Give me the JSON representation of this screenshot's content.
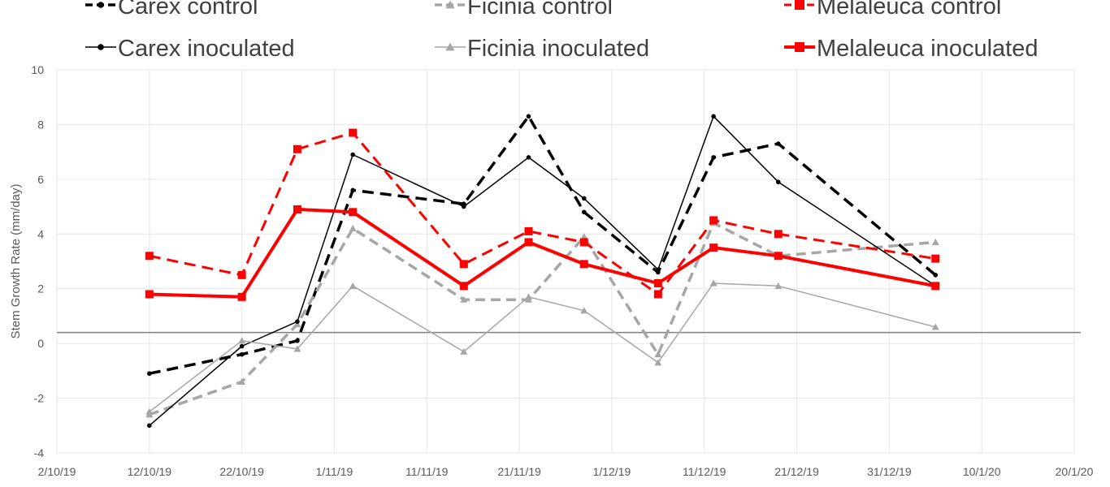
{
  "chart_data": {
    "type": "line",
    "title": "",
    "xlabel": "",
    "ylabel": "Stem Growth Rate (mm/day)",
    "ylim": [
      -4,
      10
    ],
    "xlim": [
      "2019-10-02",
      "2020-01-20"
    ],
    "x_ticks": [
      "2/10/19",
      "12/10/19",
      "22/10/19",
      "1/11/19",
      "11/11/19",
      "21/11/19",
      "1/12/19",
      "11/12/19",
      "21/12/19",
      "31/12/19",
      "10/1/20",
      "20/1/20"
    ],
    "y_ticks": [
      "-4",
      "-2",
      "0",
      "2",
      "4",
      "6",
      "8",
      "10"
    ],
    "grid": true,
    "legend_position": "top",
    "reference_line_y": 0.4,
    "series": [
      {
        "name": "Carex control",
        "color": "#000000",
        "style": "dashed",
        "marker": "circle",
        "x": [
          "2019-10-12",
          "2019-10-22",
          "2019-10-28",
          "2019-11-03",
          "2019-11-15",
          "2019-11-22",
          "2019-11-28",
          "2019-12-06",
          "2019-12-12",
          "2019-12-19",
          "2020-01-05"
        ],
        "values": [
          -1.1,
          -0.4,
          0.1,
          5.6,
          5.1,
          8.3,
          4.8,
          2.6,
          6.8,
          7.3,
          2.5
        ]
      },
      {
        "name": "Ficinia control",
        "color": "#a6a6a6",
        "style": "dashed",
        "marker": "triangle",
        "x": [
          "2019-10-12",
          "2019-10-22",
          "2019-10-28",
          "2019-11-03",
          "2019-11-15",
          "2019-11-22",
          "2019-11-28",
          "2019-12-06",
          "2019-12-12",
          "2019-12-19",
          "2020-01-05"
        ],
        "values": [
          -2.6,
          -1.4,
          0.7,
          4.2,
          1.6,
          1.6,
          3.9,
          -0.4,
          4.4,
          3.2,
          3.7
        ]
      },
      {
        "name": "Melaleuca control",
        "color": "#ff0000",
        "style": "dashed",
        "marker": "square",
        "x": [
          "2019-10-12",
          "2019-10-22",
          "2019-10-28",
          "2019-11-03",
          "2019-11-15",
          "2019-11-22",
          "2019-11-28",
          "2019-12-06",
          "2019-12-12",
          "2019-12-19",
          "2020-01-05"
        ],
        "values": [
          3.2,
          2.5,
          7.1,
          7.7,
          2.9,
          4.1,
          3.7,
          1.8,
          4.5,
          4.0,
          3.1
        ]
      },
      {
        "name": "Carex inoculated",
        "color": "#000000",
        "style": "solid",
        "marker": "circle",
        "x": [
          "2019-10-12",
          "2019-10-22",
          "2019-10-28",
          "2019-11-03",
          "2019-11-15",
          "2019-11-22",
          "2019-11-28",
          "2019-12-06",
          "2019-12-12",
          "2019-12-19",
          "2020-01-05"
        ],
        "values": [
          -3.0,
          -0.1,
          0.8,
          6.9,
          5.0,
          6.8,
          5.3,
          2.7,
          8.3,
          5.9,
          2.1
        ]
      },
      {
        "name": "Ficinia inoculated",
        "color": "#a6a6a6",
        "style": "solid",
        "marker": "triangle",
        "x": [
          "2019-10-12",
          "2019-10-22",
          "2019-10-28",
          "2019-11-03",
          "2019-11-15",
          "2019-11-22",
          "2019-11-28",
          "2019-12-06",
          "2019-12-12",
          "2019-12-19",
          "2020-01-05"
        ],
        "values": [
          -2.5,
          0.1,
          -0.2,
          2.1,
          -0.3,
          1.7,
          1.2,
          -0.7,
          2.2,
          2.1,
          0.6
        ]
      },
      {
        "name": "Melaleuca inoculated",
        "color": "#ff0000",
        "style": "solid",
        "marker": "square",
        "x": [
          "2019-10-12",
          "2019-10-22",
          "2019-10-28",
          "2019-11-03",
          "2019-11-15",
          "2019-11-22",
          "2019-11-28",
          "2019-12-06",
          "2019-12-12",
          "2019-12-19",
          "2020-01-05"
        ],
        "values": [
          1.8,
          1.7,
          4.9,
          4.8,
          2.1,
          3.7,
          2.9,
          2.2,
          3.5,
          3.2,
          2.1
        ]
      }
    ]
  }
}
